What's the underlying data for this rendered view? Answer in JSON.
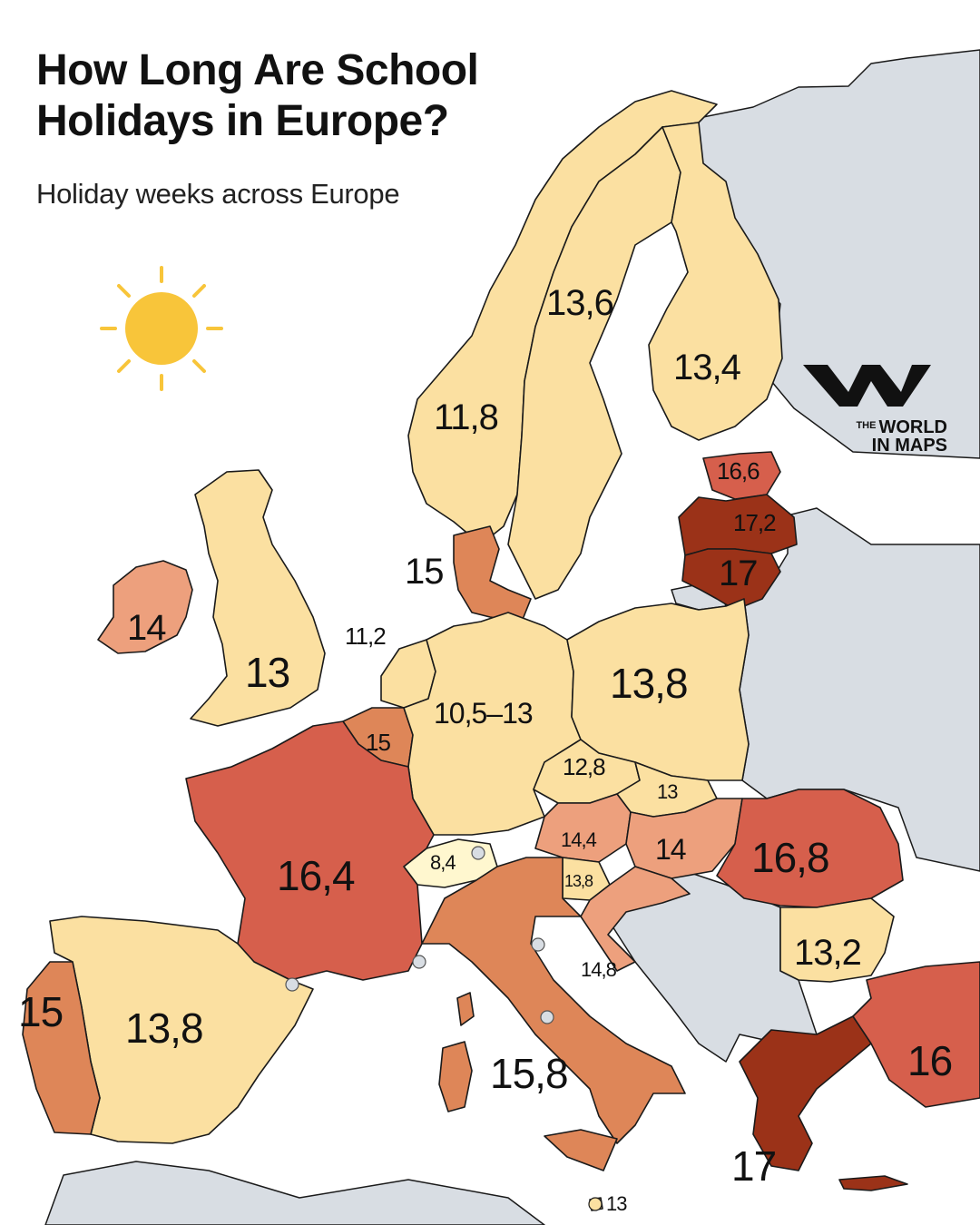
{
  "title": "How Long Are School Holidays in Europe?",
  "subtitle": "Holiday weeks across Europe",
  "brand": {
    "small": "THE",
    "line1": "WORLD",
    "line2": "IN MAPS"
  },
  "colors": {
    "background": "#ffffff",
    "sea": "#ffffff",
    "non_covered": "#d8dde3",
    "border": "#1a1a1a",
    "sun": "#f8c53a",
    "scale": {
      "lowest": "#fff7cf",
      "low": "#fbe0a1",
      "mid": "#eda07d",
      "mid_high": "#de8658",
      "high": "#d65f4c",
      "highest": "#9b3218"
    }
  },
  "icons": [
    "sun-icon",
    "world-in-maps-logo-icon"
  ],
  "regions": [
    {
      "id": "norway",
      "value": "11,8",
      "color": "low"
    },
    {
      "id": "sweden",
      "value": "13,6",
      "color": "low"
    },
    {
      "id": "finland",
      "value": "13,4",
      "color": "low"
    },
    {
      "id": "estonia",
      "value": "16,6",
      "color": "high"
    },
    {
      "id": "latvia",
      "value": "17,2",
      "color": "highest"
    },
    {
      "id": "lithuania",
      "value": "17",
      "color": "highest"
    },
    {
      "id": "denmark",
      "value": "15",
      "color": "mid_high"
    },
    {
      "id": "ireland",
      "value": "14",
      "color": "mid"
    },
    {
      "id": "united-kingdom",
      "value": "13",
      "color": "low"
    },
    {
      "id": "netherlands",
      "value": "11,2",
      "color": "low"
    },
    {
      "id": "belgium",
      "value": "15",
      "color": "mid_high"
    },
    {
      "id": "germany",
      "value": "10,5–13",
      "color": "low"
    },
    {
      "id": "poland",
      "value": "13,8",
      "color": "low"
    },
    {
      "id": "czechia",
      "value": "12,8",
      "color": "low"
    },
    {
      "id": "slovakia",
      "value": "13",
      "color": "low"
    },
    {
      "id": "austria",
      "value": "14,4",
      "color": "mid"
    },
    {
      "id": "hungary",
      "value": "14",
      "color": "mid"
    },
    {
      "id": "switzerland",
      "value": "8,4",
      "color": "lowest"
    },
    {
      "id": "slovenia",
      "value": "13,8",
      "color": "low"
    },
    {
      "id": "croatia",
      "value": "14,8",
      "color": "mid"
    },
    {
      "id": "romania",
      "value": "16,8",
      "color": "high"
    },
    {
      "id": "bulgaria",
      "value": "13,2",
      "color": "low"
    },
    {
      "id": "france",
      "value": "16,4",
      "color": "high"
    },
    {
      "id": "spain",
      "value": "13,8",
      "color": "low"
    },
    {
      "id": "portugal",
      "value": "15",
      "color": "mid_high"
    },
    {
      "id": "italy",
      "value": "15,8",
      "color": "mid_high"
    },
    {
      "id": "greece",
      "value": "17",
      "color": "highest"
    },
    {
      "id": "turkey",
      "value": "16",
      "color": "high"
    },
    {
      "id": "malta",
      "value": "13",
      "color": "low"
    }
  ]
}
